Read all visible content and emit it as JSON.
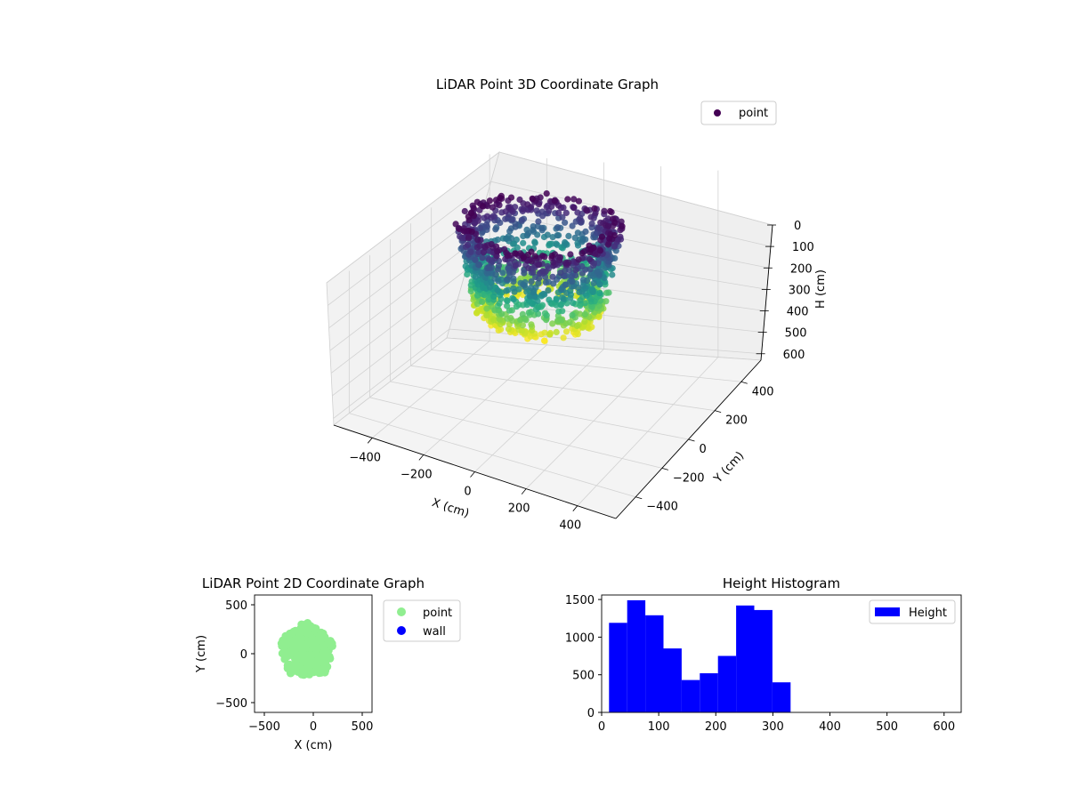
{
  "chart_data": [
    {
      "type": "scatter",
      "projection": "3d",
      "title": "LiDAR Point 3D Coordinate Graph",
      "xlabel": "X (cm)",
      "ylabel": "Y (cm)",
      "zlabel": "H (cm)",
      "xlim": [
        -550,
        550
      ],
      "ylim": [
        -550,
        550
      ],
      "zlim": [
        630,
        0
      ],
      "xticks": [
        "−400",
        "−200",
        "0",
        "200",
        "400"
      ],
      "yticks": [
        "−400",
        "−200",
        "0",
        "200",
        "400"
      ],
      "zticks": [
        "0",
        "100",
        "200",
        "300",
        "400",
        "500",
        "600"
      ],
      "xtick_values": [
        -400,
        -200,
        0,
        200,
        400
      ],
      "ytick_values": [
        -400,
        -200,
        0,
        200,
        400
      ],
      "ztick_values": [
        0,
        100,
        200,
        300,
        400,
        500,
        600
      ],
      "colormap": "viridis",
      "legend": {
        "position": "top-right",
        "entries": [
          {
            "label": "point",
            "color": "#440154"
          }
        ]
      },
      "grid": true,
      "cloud": {
        "center_x": -20,
        "center_y": 40,
        "radius_x": 280,
        "radius_y": 260,
        "h_min": 20,
        "h_max": 330
      }
    },
    {
      "type": "scatter",
      "title": "LiDAR Point 2D Coordinate Graph",
      "xlabel": "X (cm)",
      "ylabel": "Y (cm)",
      "xlim": [
        -600,
        600
      ],
      "ylim": [
        -600,
        600
      ],
      "xticks": [
        "−500",
        "0",
        "500"
      ],
      "yticks": [
        "−500",
        "0",
        "500"
      ],
      "xtick_values": [
        -500,
        0,
        500
      ],
      "ytick_values": [
        -500,
        0,
        500
      ],
      "series": [
        {
          "name": "point",
          "color": "#90ee90",
          "shape_extent": {
            "x": [
              -330,
              200
            ],
            "y": [
              -250,
              300
            ]
          }
        },
        {
          "name": "wall",
          "color": "#0000ff",
          "points": []
        }
      ],
      "legend": {
        "position": "outside-right"
      }
    },
    {
      "type": "bar",
      "title": "Height Histogram",
      "xlim": [
        0,
        630
      ],
      "ylim": [
        0,
        1560
      ],
      "xticks": [
        "0",
        "100",
        "200",
        "300",
        "400",
        "500",
        "600"
      ],
      "yticks": [
        "0",
        "500",
        "1000",
        "1500"
      ],
      "xtick_values": [
        0,
        100,
        200,
        300,
        400,
        500,
        600
      ],
      "ytick_values": [
        0,
        500,
        1000,
        1500
      ],
      "series": [
        {
          "name": "Height",
          "color": "#0000ff",
          "bin_edges": [
            13,
            44.8,
            76.6,
            108.4,
            140.2,
            172,
            203.8,
            235.6,
            267.4,
            299.2,
            331
          ],
          "values": [
            1190,
            1490,
            1290,
            850,
            430,
            520,
            750,
            1420,
            1360,
            400
          ]
        }
      ],
      "legend": {
        "position": "top-right"
      }
    }
  ]
}
